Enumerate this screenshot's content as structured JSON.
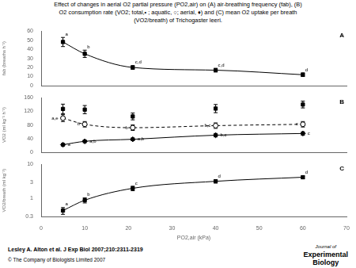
{
  "title": [
    "Effect of changes in aerial O2 partial pressure (PO2,air) on (A) air-breathing frequency (fab), (B)",
    "O2 consumption rate (ṾO2; total,• ; aquatic, ○; aerial, ♦) and (C) mean O2 uptake per breath",
    "(VO2/breath) of Trichogaster leeri."
  ],
  "annotations": [
    "Lesley A. Alton et al. J Exp Biol 2007;210:2311-2319",
    "© The Company of Biologists Limited 2007",
    "Journal of",
    "Experimental",
    "Biology"
  ],
  "chart_data": [
    {
      "type": "scatter",
      "title": "A",
      "x": [
        5,
        10,
        21,
        40,
        60
      ],
      "xlim": [
        0,
        70
      ],
      "xticks": [
        0,
        10,
        20,
        30,
        40,
        50,
        60,
        70
      ],
      "ylim": [
        0,
        60
      ],
      "yticks": [
        0,
        10,
        20,
        30,
        40,
        50,
        60
      ],
      "ylabel": "fab (breaths h⁻¹)",
      "tick_labels": "y",
      "grid": false,
      "series": [
        {
          "color": "#000000",
          "marker": "square",
          "line_style": "solid",
          "values": [
            48,
            35,
            20,
            17,
            12
          ],
          "errors": [
            5,
            4,
            2,
            2,
            2
          ],
          "annotations": [
            "a",
            "b",
            "c,d",
            "c,d",
            "d"
          ]
        }
      ]
    },
    {
      "type": "scatter",
      "title": "B",
      "x": [
        5,
        10,
        21,
        40,
        60
      ],
      "xlim": [
        0,
        70
      ],
      "xticks": [
        0,
        10,
        20,
        30,
        40,
        50,
        60,
        70
      ],
      "ylim": [
        0,
        160
      ],
      "yticks": [
        0,
        40,
        80,
        120,
        160
      ],
      "ylabel": "ṾO2 (ml kg⁻¹ h⁻¹)",
      "tick_labels": "y",
      "grid": false,
      "series": [
        {
          "color": "#000000",
          "marker": "square",
          "line_style": "none",
          "values": [
            127,
            125,
            105,
            128,
            140
          ],
          "errors": [
            14,
            12,
            10,
            12,
            10
          ]
        },
        {
          "color": "#000000",
          "marker": "circle_open",
          "line_style": "dashed",
          "values": [
            100,
            82,
            72,
            78,
            82
          ],
          "errors": [
            10,
            8,
            8,
            8,
            8
          ],
          "annotations": [
            "a,e",
            "b",
            "b",
            "b,c",
            "c"
          ]
        },
        {
          "color": "#000000",
          "marker": "diamond",
          "line_style": "solid",
          "values": [
            22,
            32,
            38,
            50,
            55
          ],
          "errors": [
            4,
            4,
            4,
            5,
            5
          ],
          "annotations": [
            "a",
            "a,b",
            "a,b",
            "b,c",
            "c"
          ]
        }
      ]
    },
    {
      "type": "scatter",
      "title": "C",
      "x": [
        5,
        10,
        21,
        40,
        60
      ],
      "xlim": [
        0,
        70
      ],
      "xticks": [
        0,
        10,
        20,
        30,
        40,
        50,
        60,
        70
      ],
      "ylim": [
        0.3,
        10
      ],
      "yticks": [
        0.3,
        1,
        3,
        10
      ],
      "log": "y",
      "ylabel": "VO2/breath (ml kg⁻¹)",
      "xlabel": "PO2,air (kPa)",
      "grid": false,
      "series": [
        {
          "color": "#000000",
          "marker": "square",
          "line_style": "solid",
          "values": [
            0.45,
            0.9,
            2.0,
            3.2,
            4.2
          ],
          "errors": [
            0.1,
            0.15,
            0.3,
            0.35,
            0.4
          ],
          "annotations": [
            "a",
            "b",
            "c",
            "d",
            "d"
          ]
        }
      ]
    }
  ]
}
